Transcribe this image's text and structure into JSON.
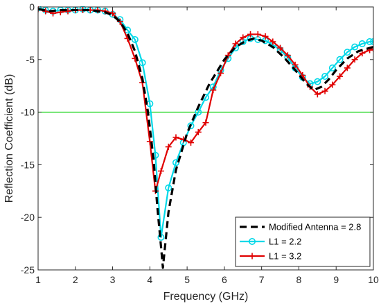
{
  "chart_data": {
    "type": "line",
    "title": "",
    "xlabel": "Frequency   (GHz)",
    "ylabel": "Reflection Coefficient   (dB)",
    "xlim": [
      1,
      10
    ],
    "ylim": [
      -25,
      0
    ],
    "xticks": [
      1,
      2,
      3,
      4,
      5,
      6,
      7,
      8,
      9,
      10
    ],
    "yticks": [
      0,
      -5,
      -10,
      -15,
      -20,
      -25
    ],
    "xtick_labels": [
      "1",
      "2",
      "3",
      "4",
      "5",
      "6",
      "7",
      "8",
      "9",
      "10"
    ],
    "ytick_labels": [
      "0",
      "-5",
      "-10",
      "-15",
      "-20",
      "-25"
    ],
    "grid": false,
    "legend_position": "bottom-right",
    "reference_line": {
      "y": -10,
      "color": "#00d000"
    },
    "series": [
      {
        "name": "Modified Antenna = 2.8",
        "color": "#000000",
        "style": "dashed",
        "marker": "none",
        "x": [
          1.0,
          1.3,
          1.6,
          2.0,
          2.4,
          2.8,
          3.0,
          3.2,
          3.4,
          3.6,
          3.8,
          3.95,
          4.1,
          4.2,
          4.3,
          4.35,
          4.5,
          4.7,
          5.0,
          5.3,
          5.6,
          6.0,
          6.3,
          6.6,
          6.8,
          7.0,
          7.3,
          7.6,
          7.9,
          8.2,
          8.4,
          8.6,
          8.8,
          9.0,
          9.3,
          9.6,
          10.0
        ],
        "y": [
          -0.2,
          -0.4,
          -0.3,
          -0.3,
          -0.3,
          -0.5,
          -0.8,
          -1.4,
          -2.5,
          -4.2,
          -6.8,
          -10.0,
          -14.5,
          -19.0,
          -22.8,
          -24.8,
          -19.5,
          -15.5,
          -12.0,
          -9.5,
          -7.3,
          -5.0,
          -3.8,
          -3.2,
          -3.0,
          -3.2,
          -3.8,
          -4.8,
          -6.0,
          -7.3,
          -7.9,
          -7.6,
          -6.9,
          -6.0,
          -4.9,
          -4.2,
          -3.8
        ]
      },
      {
        "name": "L1 = 2.2",
        "color": "#00d8e8",
        "style": "solid",
        "marker": "circle",
        "x": [
          1.0,
          1.2,
          1.4,
          1.6,
          1.8,
          2.0,
          2.2,
          2.4,
          2.6,
          2.8,
          3.0,
          3.2,
          3.4,
          3.6,
          3.8,
          4.0,
          4.15,
          4.3,
          4.5,
          4.7,
          4.9,
          5.1,
          5.3,
          5.5,
          5.7,
          5.9,
          6.1,
          6.3,
          6.5,
          6.7,
          6.9,
          7.1,
          7.3,
          7.5,
          7.7,
          7.9,
          8.1,
          8.3,
          8.5,
          8.7,
          8.9,
          9.1,
          9.3,
          9.5,
          9.7,
          9.9,
          10.0
        ],
        "y": [
          -0.1,
          -0.3,
          -0.4,
          -0.3,
          -0.3,
          -0.3,
          -0.2,
          -0.3,
          -0.3,
          -0.4,
          -0.7,
          -1.2,
          -2.2,
          -3.1,
          -5.3,
          -9.2,
          -14.1,
          -21.9,
          -17.2,
          -14.8,
          -12.9,
          -11.3,
          -10.0,
          -8.6,
          -7.6,
          -6.0,
          -4.9,
          -3.9,
          -3.3,
          -3.0,
          -3.1,
          -3.2,
          -3.6,
          -4.1,
          -4.8,
          -5.8,
          -6.7,
          -7.3,
          -7.1,
          -6.6,
          -5.8,
          -5.0,
          -4.3,
          -3.8,
          -3.5,
          -3.3,
          -3.3
        ]
      },
      {
        "name": "L1 = 3.2",
        "color": "#e00000",
        "style": "solid",
        "marker": "plus",
        "x": [
          1.0,
          1.2,
          1.4,
          1.6,
          1.8,
          2.0,
          2.2,
          2.4,
          2.6,
          2.8,
          3.0,
          3.2,
          3.4,
          3.6,
          3.8,
          4.0,
          4.15,
          4.3,
          4.5,
          4.7,
          4.9,
          5.1,
          5.3,
          5.5,
          5.7,
          5.9,
          6.1,
          6.3,
          6.5,
          6.7,
          6.9,
          7.1,
          7.3,
          7.5,
          7.7,
          7.9,
          8.1,
          8.3,
          8.5,
          8.7,
          8.9,
          9.1,
          9.3,
          9.5,
          9.7,
          9.9,
          10.0
        ],
        "y": [
          -0.2,
          -0.4,
          -0.6,
          -0.5,
          -0.4,
          -0.3,
          -0.3,
          -0.3,
          -0.3,
          -0.4,
          -0.6,
          -1.4,
          -3.0,
          -4.9,
          -7.2,
          -12.8,
          -17.5,
          -15.6,
          -13.3,
          -12.4,
          -12.6,
          -12.9,
          -11.9,
          -11.0,
          -7.9,
          -6.3,
          -4.6,
          -3.5,
          -2.9,
          -2.6,
          -2.6,
          -2.8,
          -3.3,
          -3.9,
          -4.6,
          -5.5,
          -6.5,
          -7.6,
          -8.3,
          -8.0,
          -7.4,
          -6.6,
          -5.8,
          -5.0,
          -4.4,
          -4.1,
          -4.0
        ]
      }
    ]
  }
}
